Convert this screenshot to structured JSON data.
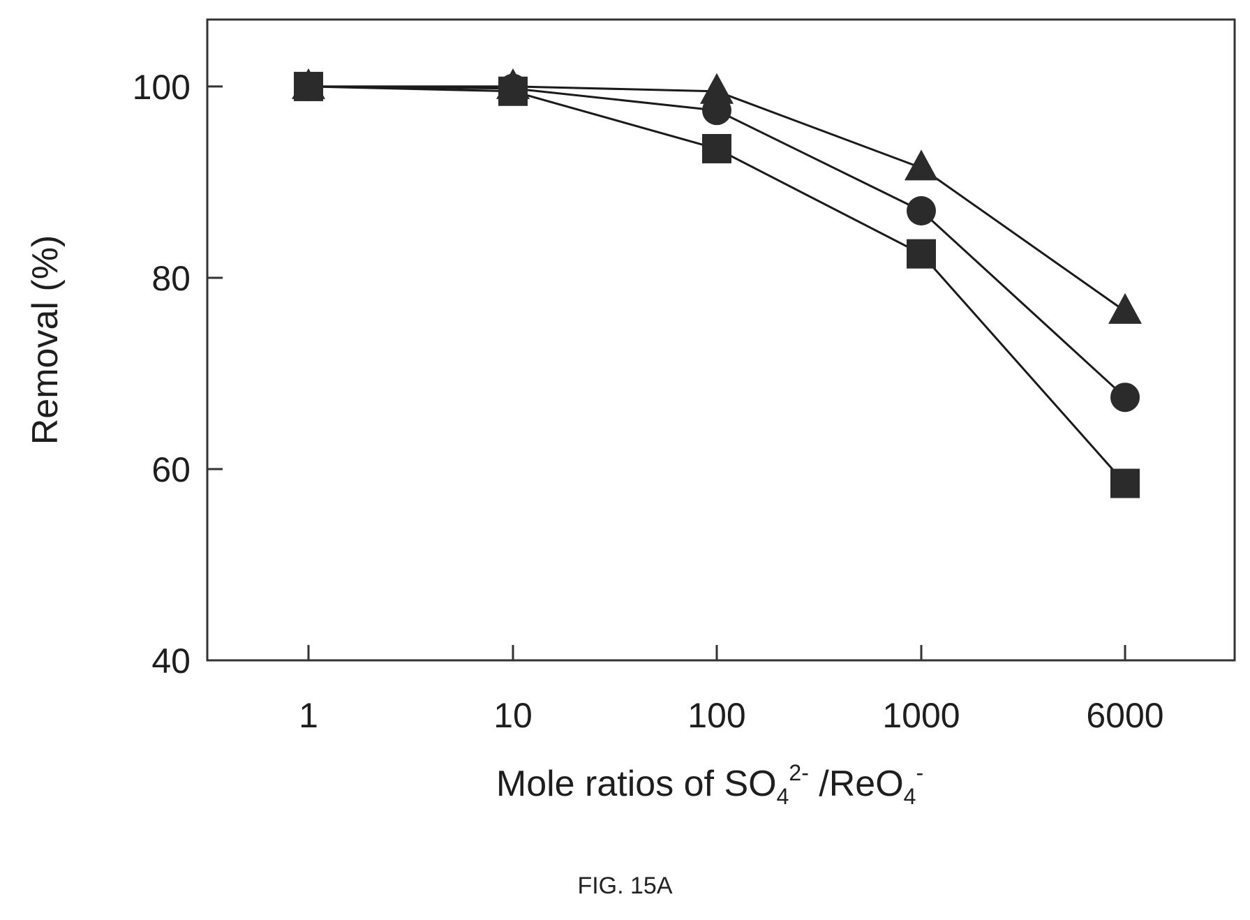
{
  "chart_data": {
    "type": "line",
    "categories": [
      "1",
      "10",
      "100",
      "1000",
      "6000"
    ],
    "series": [
      {
        "marker": "triangle",
        "values": [
          100,
          100,
          99.5,
          91.5,
          76.5
        ]
      },
      {
        "marker": "circle",
        "values": [
          100,
          99.8,
          97.5,
          87,
          67.5
        ]
      },
      {
        "marker": "square",
        "values": [
          100,
          99.5,
          93.5,
          82.5,
          58.5
        ]
      }
    ],
    "ylabel": "Removal (%)",
    "xlabel": {
      "prefix": "Mole ratios of SO",
      "sub1": "4",
      "sup1": "2-",
      "mid": " /ReO",
      "sub2": "4",
      "sup2": "-"
    },
    "ylim": [
      40,
      107
    ],
    "yticks": [
      40,
      60,
      80,
      100
    ],
    "grid": false,
    "legend": "none",
    "colors": {
      "line": "#1a1a1a",
      "marker": "#2b2b2b",
      "axis": "#333333"
    }
  },
  "caption": "FIG. 15A"
}
